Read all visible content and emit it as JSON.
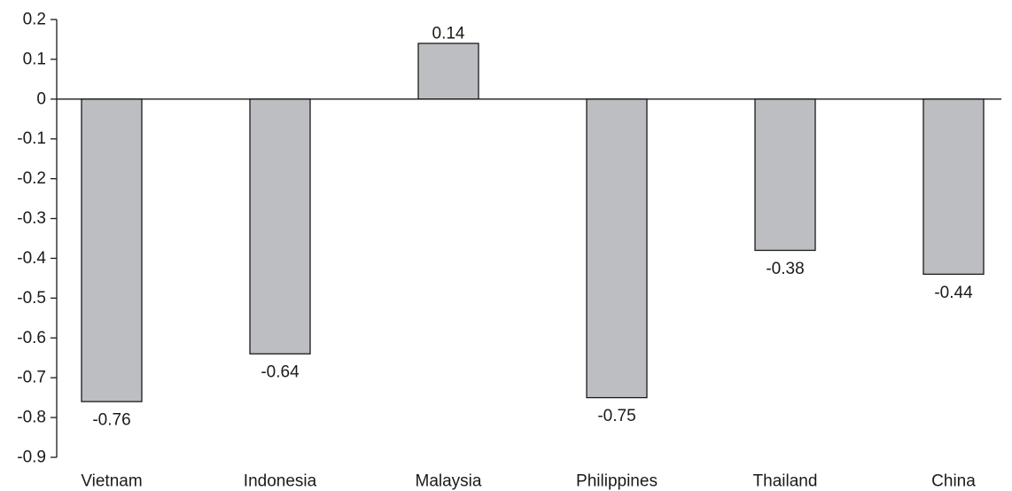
{
  "chart_data": {
    "type": "bar",
    "title": "",
    "xlabel": "",
    "ylabel": "",
    "categories": [
      "Vietnam",
      "Indonesia",
      "Malaysia",
      "Philippines",
      "Thailand",
      "China"
    ],
    "values": [
      -0.76,
      -0.64,
      0.14,
      -0.75,
      -0.38,
      -0.44
    ],
    "value_labels": [
      "-0.76",
      "-0.64",
      "0.14",
      "-0.75",
      "-0.38",
      "-0.44"
    ],
    "ylim": [
      -0.9,
      0.2
    ],
    "yticks": [
      0.2,
      0.1,
      0,
      -0.1,
      -0.2,
      -0.3,
      -0.4,
      -0.5,
      -0.6,
      -0.7,
      -0.8,
      -0.9
    ],
    "ytick_labels": [
      "0.2",
      "0.1",
      "0",
      "-0.1",
      "-0.2",
      "-0.3",
      "-0.4",
      "-0.5",
      "-0.6",
      "-0.7",
      "-0.8",
      "-0.9"
    ],
    "grid": false,
    "legend": "none",
    "colors": {
      "bar_fill": "#bdbec2",
      "bar_stroke": "#1a1a1a",
      "axis": "#1a1a1a",
      "text": "#1a1a1a"
    }
  }
}
